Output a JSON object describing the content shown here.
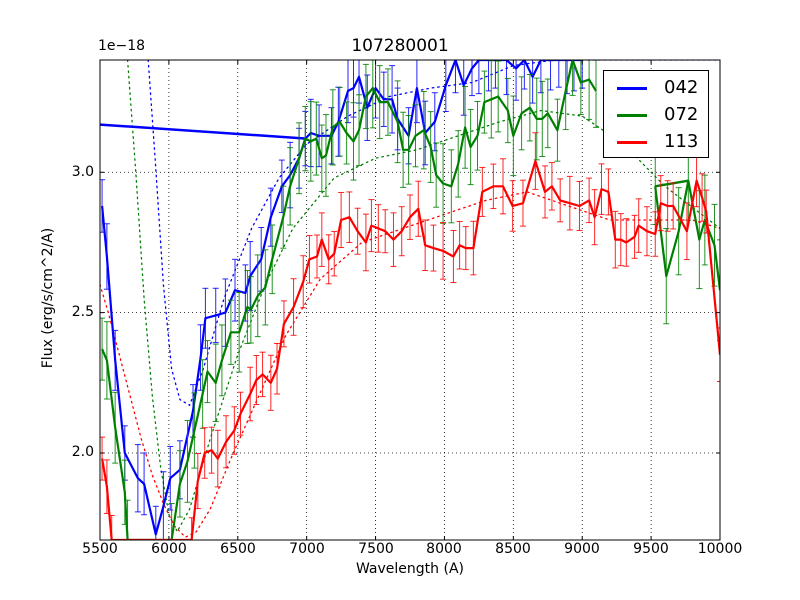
{
  "figure": {
    "title": "107280001",
    "offset_text": "1e−18",
    "xlabel": "Wavelength (A)",
    "ylabel": "Flux (erg/s/cm^2/A)",
    "xticks": [
      "5500",
      "6000",
      "6500",
      "7000",
      "7500",
      "8000",
      "8500",
      "9000",
      "9500",
      "10000"
    ],
    "yticks": [
      "2.0",
      "2.5",
      "3.0"
    ]
  },
  "legend": {
    "items": [
      {
        "label": "042",
        "color": "#0000ff"
      },
      {
        "label": "072",
        "color": "#008000"
      },
      {
        "label": "113",
        "color": "#ff0000"
      }
    ]
  },
  "chart_data": {
    "type": "line",
    "title": "107280001",
    "xlabel": "Wavelength (A)",
    "ylabel": "Flux (erg/s/cm^2/A)",
    "y_scale_factor": "1e-18",
    "xlim": [
      5500,
      10000
    ],
    "ylim": [
      1.69,
      3.4
    ],
    "xticks": [
      5500,
      6000,
      6500,
      7000,
      7500,
      8000,
      8500,
      9000,
      9500,
      10000
    ],
    "yticks": [
      2.0,
      2.5,
      3.0
    ],
    "grid": true,
    "legend_position": "upper right",
    "series": [
      {
        "name": "042",
        "color": "#0000ff",
        "yerr": 0.11,
        "x": [
          5515,
          5550,
          5610,
          5680,
          5775,
          5820,
          5905,
          5960,
          6010,
          6080,
          6175,
          6230,
          6265,
          6340,
          6410,
          6480,
          6555,
          6590,
          6670,
          6740,
          6820,
          6880,
          6945,
          6990,
          7030,
          7090,
          7180,
          7230,
          7300,
          7340,
          7380,
          7440,
          7500,
          7560,
          7620,
          7660,
          7740,
          7800,
          7860,
          7930,
          8010,
          8080,
          8140,
          8200,
          8250,
          8320,
          8370,
          8450,
          8520,
          8580,
          8640,
          8700,
          8770,
          8830,
          8890,
          8940,
          9000
        ],
        "y": [
          2.88,
          2.7,
          2.33,
          2.0,
          1.91,
          1.89,
          1.71,
          1.81,
          1.91,
          1.94,
          2.15,
          2.34,
          2.48,
          2.49,
          2.5,
          2.58,
          2.57,
          2.63,
          2.69,
          2.84,
          2.95,
          2.99,
          3.05,
          3.12,
          3.14,
          3.13,
          3.13,
          3.18,
          3.29,
          3.3,
          3.34,
          3.23,
          3.3,
          3.26,
          3.26,
          3.19,
          3.13,
          3.3,
          3.14,
          3.18,
          3.31,
          3.4,
          3.31,
          3.37,
          3.4,
          3.4,
          3.4,
          3.4,
          3.37,
          3.4,
          3.34,
          3.4,
          3.4,
          3.4,
          3.4,
          3.4,
          3.4
        ]
      },
      {
        "name": "072",
        "color": "#008000",
        "yerr": 0.13,
        "x": [
          5515,
          5550,
          5610,
          5680,
          5700,
          6020,
          6080,
          6135,
          6185,
          6245,
          6280,
          6340,
          6385,
          6450,
          6510,
          6570,
          6595,
          6645,
          6700,
          6750,
          6830,
          6880,
          6945,
          6990,
          7030,
          7070,
          7110,
          7140,
          7190,
          7240,
          7290,
          7340,
          7380,
          7430,
          7480,
          7530,
          7590,
          7660,
          7700,
          7740,
          7790,
          7850,
          7900,
          7940,
          7990,
          8050,
          8100,
          8150,
          8190,
          8240,
          8290,
          8340,
          8390,
          8460,
          8500,
          8560,
          8620,
          8670,
          8710,
          8750,
          8820,
          8880,
          8930,
          8990,
          9050,
          9100
        ],
        "y": [
          2.37,
          2.33,
          2.09,
          1.86,
          1.69,
          1.69,
          1.89,
          1.97,
          2.08,
          2.21,
          2.29,
          2.25,
          2.33,
          2.43,
          2.43,
          2.52,
          2.51,
          2.56,
          2.59,
          2.69,
          2.84,
          2.95,
          3.05,
          3.12,
          3.11,
          3.12,
          3.05,
          3.06,
          3.16,
          3.18,
          3.14,
          3.11,
          3.15,
          3.27,
          3.3,
          3.25,
          3.25,
          3.18,
          3.08,
          3.08,
          3.13,
          3.15,
          3.09,
          2.99,
          2.96,
          2.95,
          3.03,
          3.16,
          3.09,
          3.13,
          3.25,
          3.26,
          3.27,
          3.22,
          3.13,
          3.21,
          3.23,
          3.19,
          3.19,
          3.21,
          3.15,
          3.29,
          3.4,
          3.32,
          3.33,
          3.29
        ]
      },
      {
        "name": "072 (tail)",
        "color": "#008000",
        "yerr": 0.16,
        "x": [
          9530,
          9610,
          9700,
          9770,
          9850,
          9890,
          9960,
          10000
        ],
        "y": [
          2.95,
          2.63,
          2.79,
          2.97,
          2.76,
          2.83,
          2.74,
          2.58
        ]
      },
      {
        "name": "113",
        "color": "#ff0000",
        "yerr": 0.09,
        "x": [
          5515,
          5550,
          5585,
          6165,
          6210,
          6260,
          6310,
          6355,
          6415,
          6475,
          6520,
          6590,
          6635,
          6680,
          6740,
          6785,
          6835,
          6905,
          6975,
          7020,
          7075,
          7110,
          7160,
          7200,
          7250,
          7310,
          7370,
          7430,
          7470,
          7520,
          7570,
          7630,
          7690,
          7750,
          7810,
          7860,
          7920,
          7990,
          8065,
          8110,
          8155,
          8210,
          8275,
          8355,
          8425,
          8495,
          8570,
          8660,
          8730,
          8780,
          8840,
          8910,
          8980,
          9050,
          9090,
          9140,
          9190,
          9240,
          9280,
          9320,
          9380,
          9410,
          9470,
          9530,
          9570,
          9620,
          9660,
          9760,
          9830,
          9870,
          9900,
          10000
        ],
        "y": [
          1.98,
          1.88,
          1.69,
          1.69,
          1.9,
          2.0,
          2.01,
          1.98,
          2.04,
          2.08,
          2.14,
          2.21,
          2.26,
          2.28,
          2.25,
          2.3,
          2.46,
          2.52,
          2.61,
          2.69,
          2.7,
          2.76,
          2.69,
          2.71,
          2.83,
          2.84,
          2.79,
          2.75,
          2.81,
          2.8,
          2.79,
          2.76,
          2.79,
          2.84,
          2.87,
          2.74,
          2.73,
          2.72,
          2.7,
          2.74,
          2.73,
          2.73,
          2.93,
          2.95,
          2.95,
          2.88,
          2.89,
          3.04,
          2.93,
          2.95,
          2.9,
          2.89,
          2.88,
          2.9,
          2.84,
          2.94,
          2.93,
          2.76,
          2.76,
          2.75,
          2.77,
          2.81,
          2.79,
          2.78,
          2.89,
          2.88,
          2.88,
          2.79,
          2.97,
          2.91,
          2.86,
          2.35
        ]
      }
    ],
    "connector_segments": [
      {
        "name": "042 wrap",
        "color": "#0000ff",
        "x": [
          5500,
          7000
        ],
        "y": [
          3.17,
          3.12
        ],
        "width": 2.5
      },
      {
        "name": "072 wrap",
        "color": "#008000",
        "x": [
          9530,
          9770
        ],
        "y": [
          2.95,
          2.97
        ],
        "width": 2.5
      }
    ],
    "fit_curves": [
      {
        "name": "042 fit",
        "color": "#0000ff",
        "x": [
          5850,
          5900,
          5960,
          6020,
          6080,
          6150,
          6250,
          6400,
          6600,
          6800,
          7000,
          7300,
          7600,
          7900,
          8200,
          8500,
          8800,
          9100,
          9400,
          9700,
          10000
        ],
        "y": [
          3.4,
          3.05,
          2.6,
          2.3,
          2.19,
          2.17,
          2.3,
          2.55,
          2.8,
          2.98,
          3.1,
          3.2,
          3.27,
          3.3,
          3.32,
          3.38,
          3.4,
          3.4,
          3.4,
          3.4,
          3.4
        ]
      },
      {
        "name": "072 fit",
        "color": "#008000",
        "x": [
          5700,
          5760,
          5820,
          5880,
          5940,
          6000,
          6060,
          6150,
          6300,
          6500,
          6700,
          6900,
          7200,
          7500,
          7800,
          8100,
          8400,
          8700,
          9000,
          9300,
          9600,
          10000
        ],
        "y": [
          3.4,
          3.0,
          2.55,
          2.2,
          1.95,
          1.78,
          1.72,
          1.8,
          2.05,
          2.35,
          2.6,
          2.8,
          2.98,
          3.05,
          3.08,
          3.13,
          3.18,
          3.22,
          3.2,
          3.1,
          2.95,
          2.8
        ]
      },
      {
        "name": "113 fit",
        "color": "#ff0000",
        "x": [
          5500,
          5560,
          5640,
          5720,
          5800,
          5880,
          5960,
          6040,
          6120,
          6200,
          6300,
          6450,
          6650,
          6850,
          7100,
          7400,
          7700,
          8000,
          8300,
          8600,
          8900,
          9200,
          9500,
          9800,
          10000
        ],
        "y": [
          2.6,
          2.5,
          2.35,
          2.2,
          2.05,
          1.92,
          1.82,
          1.74,
          1.7,
          1.72,
          1.8,
          1.98,
          2.2,
          2.42,
          2.62,
          2.75,
          2.8,
          2.85,
          2.9,
          2.93,
          2.88,
          2.83,
          2.83,
          2.83,
          2.8
        ]
      }
    ]
  }
}
